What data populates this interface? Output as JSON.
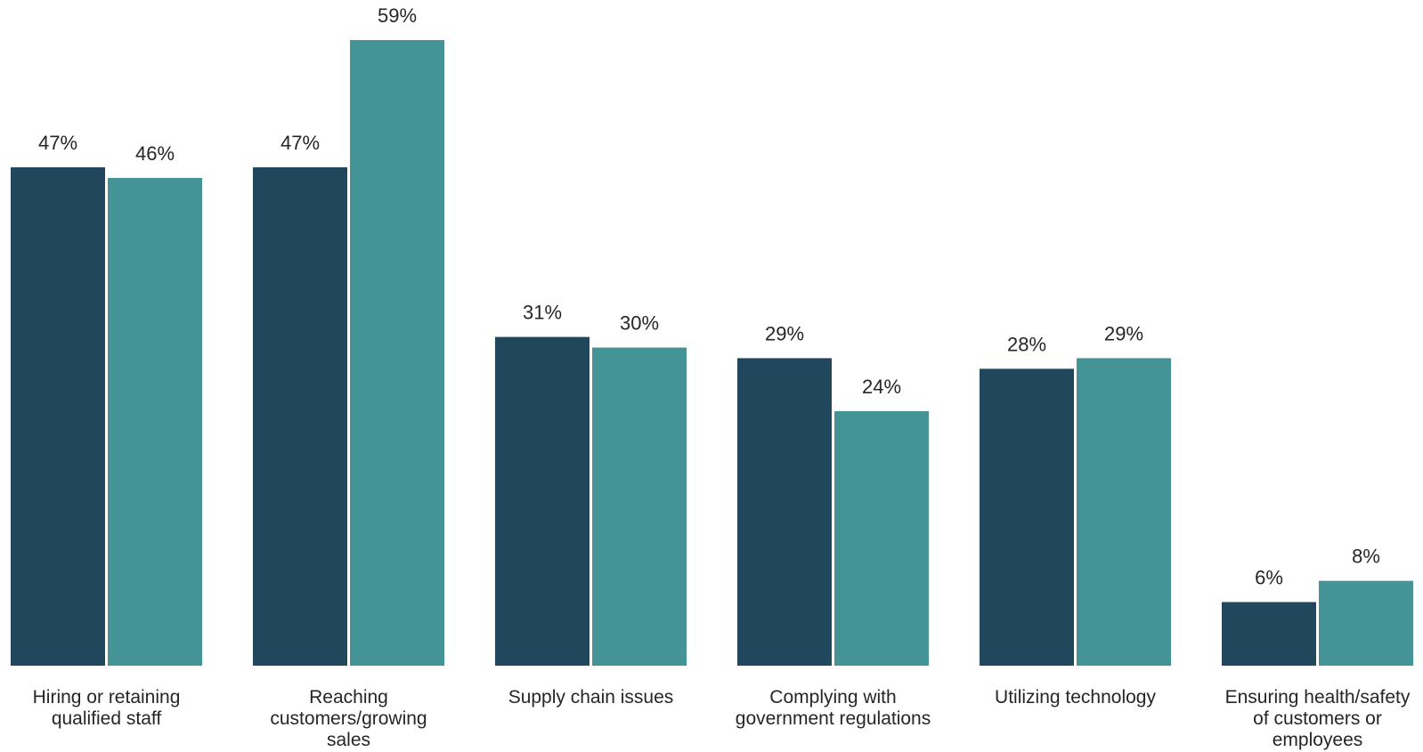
{
  "chart_data": {
    "type": "bar",
    "categories": [
      [
        "Hiring or retaining",
        "qualified staff"
      ],
      [
        "Reaching",
        "customers/growing",
        "sales"
      ],
      [
        "Supply chain issues"
      ],
      [
        "Complying with",
        "government regulations"
      ],
      [
        "Utilizing technology"
      ],
      [
        "Ensuring health/safety",
        "of customers or",
        "employees"
      ]
    ],
    "series": [
      {
        "values": [
          47,
          47,
          31,
          29,
          28,
          6
        ],
        "labels": [
          "47%",
          "47%",
          "31%",
          "29%",
          "28%",
          "6%"
        ],
        "color": "#20475c"
      },
      {
        "values": [
          46,
          59,
          30,
          24,
          29,
          8
        ],
        "labels": [
          "46%",
          "59%",
          "30%",
          "24%",
          "29%",
          "8%"
        ],
        "color": "#449396"
      }
    ],
    "ylim": [
      0,
      60
    ],
    "grid": false,
    "legend": "none"
  }
}
